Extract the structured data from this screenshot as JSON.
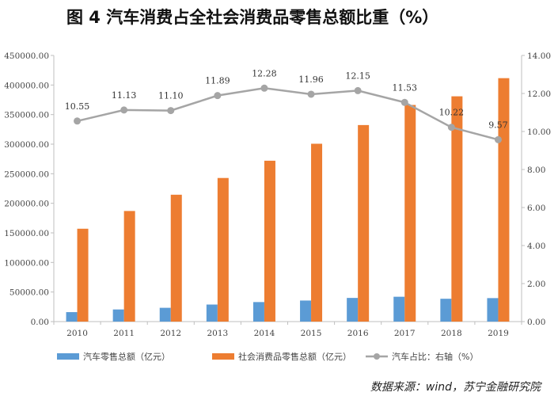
{
  "chart_data": {
    "type": "bar+line",
    "title": "图 4   汽车消费占全社会消费品零售总额比重（%）",
    "categories": [
      "2010",
      "2011",
      "2012",
      "2013",
      "2014",
      "2015",
      "2016",
      "2017",
      "2018",
      "2019"
    ],
    "series": [
      {
        "name": "汽车零售总额（亿元）",
        "kind": "bar",
        "axis": "left",
        "color": "#5b9bd5",
        "values": [
          16000,
          20500,
          23300,
          28800,
          33000,
          35600,
          40000,
          42000,
          38600,
          39700
        ]
      },
      {
        "name": "社会消费品零售总额（亿元）",
        "kind": "bar",
        "axis": "left",
        "color": "#ed7d31",
        "values": [
          157000,
          187000,
          214500,
          242800,
          272000,
          300700,
          332300,
          366300,
          380900,
          411600
        ]
      },
      {
        "name": "汽车占比：右轴（%）",
        "kind": "line",
        "axis": "right",
        "color": "#a5a5a5",
        "values": [
          10.55,
          11.13,
          11.1,
          11.89,
          12.28,
          11.96,
          12.15,
          11.53,
          10.22,
          9.57
        ],
        "labels": [
          "10.55",
          "11.13",
          "11.10",
          "11.89",
          "12.28",
          "11.96",
          "12.15",
          "11.53",
          "10.22",
          "9.57"
        ]
      }
    ],
    "left_axis": {
      "min": 0,
      "max": 450000,
      "step": 50000,
      "ticks": [
        "0.00",
        "50000.00",
        "100000.00",
        "150000.00",
        "200000.00",
        "250000.00",
        "300000.00",
        "350000.00",
        "400000.00",
        "450000.00"
      ]
    },
    "right_axis": {
      "min": 0,
      "max": 14,
      "step": 2,
      "ticks": [
        "0.00",
        "2.00",
        "4.00",
        "6.00",
        "8.00",
        "10.00",
        "12.00",
        "14.00"
      ]
    },
    "grid": false,
    "legend_position": "bottom"
  },
  "source": "数据来源：wind，苏宁金融研究院"
}
